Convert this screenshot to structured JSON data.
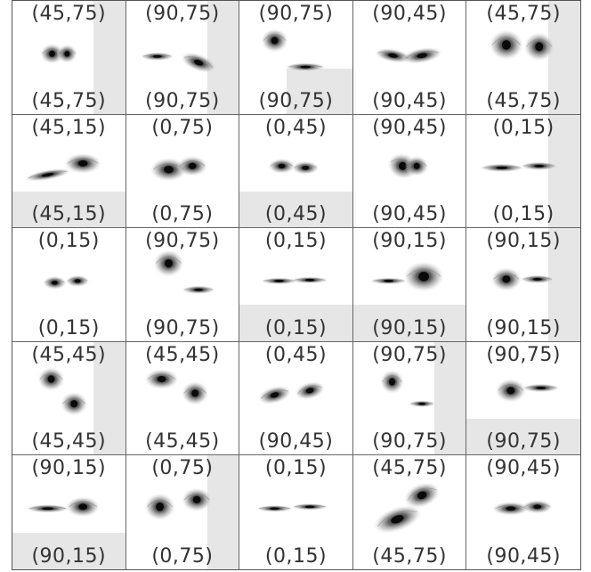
{
  "panels": [
    {
      "top": "(45,75)",
      "bottom": "(45,75)",
      "shade": "right",
      "icon": "merging-galaxies-icon"
    },
    {
      "top": "(90,75)",
      "bottom": "(90,75)",
      "shade": "right",
      "icon": "merging-galaxies-icon"
    },
    {
      "top": "(90,75)",
      "bottom": "(90,75)",
      "shade": "bottom-right",
      "icon": "merging-galaxies-icon"
    },
    {
      "top": "(90,45)",
      "bottom": "(90,45)",
      "shade": "none",
      "icon": "merging-galaxies-icon"
    },
    {
      "top": "(45,75)",
      "bottom": "(45,75)",
      "shade": "right",
      "icon": "merging-galaxies-icon"
    },
    {
      "top": "(45,15)",
      "bottom": "(45,15)",
      "shade": "bottom",
      "icon": "merging-galaxies-icon"
    },
    {
      "top": "(0,75)",
      "bottom": "(0,75)",
      "shade": "none",
      "icon": "merging-galaxies-icon"
    },
    {
      "top": "(0,45)",
      "bottom": "(0,45)",
      "shade": "bottom",
      "icon": "merging-galaxies-icon"
    },
    {
      "top": "(90,45)",
      "bottom": "(90,45)",
      "shade": "none",
      "icon": "merging-galaxies-icon"
    },
    {
      "top": "(0,15)",
      "bottom": "(0,15)",
      "shade": "right",
      "icon": "merging-galaxies-icon"
    },
    {
      "top": "(0,15)",
      "bottom": "(0,15)",
      "shade": "none",
      "icon": "merging-galaxies-icon"
    },
    {
      "top": "(90,75)",
      "bottom": "(90,75)",
      "shade": "none",
      "icon": "merging-galaxies-icon"
    },
    {
      "top": "(0,15)",
      "bottom": "(0,15)",
      "shade": "bottom",
      "icon": "merging-galaxies-icon"
    },
    {
      "top": "(90,15)",
      "bottom": "(90,15)",
      "shade": "bottom",
      "icon": "merging-galaxies-icon"
    },
    {
      "top": "(90,15)",
      "bottom": "(90,15)",
      "shade": "right",
      "icon": "merging-galaxies-icon"
    },
    {
      "top": "(45,45)",
      "bottom": "(45,45)",
      "shade": "right",
      "icon": "merging-galaxies-icon"
    },
    {
      "top": "(45,45)",
      "bottom": "(45,45)",
      "shade": "none",
      "icon": "merging-galaxies-icon"
    },
    {
      "top": "(0,45)",
      "bottom": "(90,45)",
      "shade": "none",
      "icon": "merging-galaxies-icon"
    },
    {
      "top": "(90,75)",
      "bottom": "(90,75)",
      "shade": "right",
      "icon": "merging-galaxies-icon"
    },
    {
      "top": "(90,75)",
      "bottom": "(90,75)",
      "shade": "bottom",
      "icon": "merging-galaxies-icon"
    },
    {
      "top": "(90,15)",
      "bottom": "(90,15)",
      "shade": "bottom",
      "icon": "merging-galaxies-icon"
    },
    {
      "top": "(0,75)",
      "bottom": "(0,75)",
      "shade": "right",
      "icon": "merging-galaxies-icon"
    },
    {
      "top": "(0,15)",
      "bottom": "(0,15)",
      "shade": "none",
      "icon": "merging-galaxies-icon"
    },
    {
      "top": "(45,75)",
      "bottom": "(45,75)",
      "shade": "none",
      "icon": "merging-galaxies-icon"
    },
    {
      "top": "(90,45)",
      "bottom": "(90,45)",
      "shade": "none",
      "icon": "merging-galaxies-icon"
    }
  ],
  "colors": {
    "shade": "#e6e6e6",
    "galaxy_core": "#111111",
    "galaxy_halo": "#9a9a9a",
    "border": "#666666"
  }
}
